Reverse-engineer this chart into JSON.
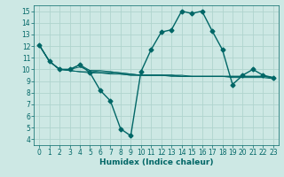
{
  "xlabel": "Humidex (Indice chaleur)",
  "bg_color": "#cde8e4",
  "grid_color": "#b0d4ce",
  "line_color": "#006666",
  "xlim": [
    -0.5,
    23.5
  ],
  "ylim": [
    3.5,
    15.5
  ],
  "xticks": [
    0,
    1,
    2,
    3,
    4,
    5,
    6,
    7,
    8,
    9,
    10,
    11,
    12,
    13,
    14,
    15,
    16,
    17,
    18,
    19,
    20,
    21,
    22,
    23
  ],
  "yticks": [
    4,
    5,
    6,
    7,
    8,
    9,
    10,
    11,
    12,
    13,
    14,
    15
  ],
  "series": [
    [
      12.1,
      10.7,
      10.0,
      10.0,
      10.4,
      9.7,
      8.2,
      7.3,
      4.9,
      4.3,
      9.8,
      11.7,
      13.2,
      13.4,
      15.0,
      14.8,
      15.0,
      13.3,
      11.7,
      8.7,
      9.5,
      10.0,
      9.5,
      9.3
    ],
    [
      12.1,
      10.7,
      10.0,
      10.0,
      10.4,
      9.9,
      9.9,
      9.8,
      9.7,
      9.6,
      9.5,
      9.5,
      9.5,
      9.5,
      9.5,
      9.4,
      9.4,
      9.4,
      9.4,
      9.4,
      9.4,
      9.4,
      9.4,
      9.3
    ],
    [
      12.1,
      10.7,
      10.0,
      10.0,
      10.2,
      9.9,
      9.8,
      9.8,
      9.7,
      9.6,
      9.5,
      9.5,
      9.5,
      9.5,
      9.4,
      9.4,
      9.4,
      9.4,
      9.4,
      9.4,
      9.4,
      9.4,
      9.4,
      9.3
    ],
    [
      12.1,
      10.7,
      10.0,
      9.9,
      9.8,
      9.8,
      9.7,
      9.7,
      9.6,
      9.5,
      9.5,
      9.5,
      9.5,
      9.5,
      9.4,
      9.4,
      9.4,
      9.4,
      9.4,
      9.4,
      9.4,
      9.4,
      9.4,
      9.3
    ],
    [
      12.1,
      10.7,
      10.0,
      9.9,
      9.8,
      9.7,
      9.7,
      9.6,
      9.6,
      9.5,
      9.5,
      9.5,
      9.5,
      9.4,
      9.4,
      9.4,
      9.4,
      9.4,
      9.4,
      9.3,
      9.3,
      9.3,
      9.3,
      9.2
    ]
  ],
  "main_series_idx": 0,
  "marker": "D",
  "markersize": 2.5,
  "linewidth_main": 1.0,
  "linewidth_other": 0.7,
  "tick_fontsize": 5.5,
  "xlabel_fontsize": 6.5
}
